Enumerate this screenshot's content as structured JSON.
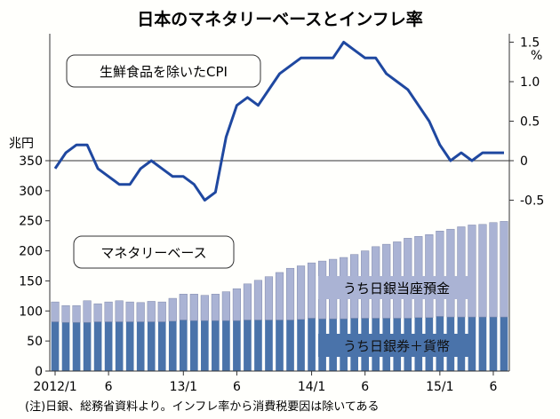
{
  "chart_data": {
    "title": "日本のマネタリーベースとインフレ率",
    "type": "bar+line",
    "left_axis": {
      "unit": "兆円",
      "ticks": [
        0,
        50,
        100,
        150,
        200,
        250,
        300,
        350
      ],
      "ylim": [
        0,
        350
      ]
    },
    "right_axis": {
      "unit": "%",
      "ticks": [
        "1.5",
        "1.0",
        "0.5",
        "0",
        "-0.5"
      ],
      "ylim": [
        -0.63,
        2.03
      ]
    },
    "x_tick_labels": [
      {
        "label": "2012/1",
        "index": 0
      },
      {
        "label": "6",
        "index": 5
      },
      {
        "label": "13/1",
        "index": 12
      },
      {
        "label": "6",
        "index": 17
      },
      {
        "label": "14/1",
        "index": 24
      },
      {
        "label": "6",
        "index": 29
      },
      {
        "label": "15/1",
        "index": 36
      },
      {
        "label": "6",
        "index": 41
      }
    ],
    "bar_series": [
      {
        "name": "うち日銀券＋貨幣",
        "color": "#4a73aa",
        "values": [
          82,
          81,
          81,
          81,
          82,
          82,
          82,
          82,
          82,
          82,
          82,
          83,
          85,
          84,
          84,
          84,
          84,
          84,
          85,
          85,
          85,
          85,
          85,
          86,
          88,
          87,
          87,
          87,
          88,
          88,
          88,
          88,
          88,
          88,
          89,
          89,
          91,
          90,
          90,
          90,
          90,
          90,
          90
        ]
      },
      {
        "name": "うち日銀当座預金",
        "color": "#aab3d4",
        "values": [
          33,
          28,
          28,
          36,
          30,
          33,
          35,
          33,
          32,
          34,
          33,
          38,
          43,
          44,
          42,
          44,
          48,
          53,
          60,
          66,
          72,
          79,
          86,
          89,
          92,
          96,
          99,
          102,
          106,
          112,
          119,
          123,
          127,
          133,
          135,
          138,
          142,
          146,
          150,
          153,
          154,
          157,
          159
        ]
      }
    ],
    "line_series": {
      "name": "生鮮食品を除いたCPI",
      "color": "#1f48a0",
      "values": [
        -0.1,
        0.1,
        0.2,
        0.2,
        -0.1,
        -0.2,
        -0.3,
        -0.3,
        -0.1,
        0.0,
        -0.1,
        -0.2,
        -0.2,
        -0.3,
        -0.5,
        -0.4,
        0.3,
        0.7,
        0.8,
        0.7,
        0.9,
        1.1,
        1.2,
        1.3,
        1.3,
        1.3,
        1.3,
        1.5,
        1.4,
        1.3,
        1.3,
        1.1,
        1.0,
        0.9,
        0.7,
        0.5,
        0.2,
        0.0,
        0.1,
        0.0,
        0.1,
        0.1,
        0.1
      ]
    },
    "labels": {
      "cpi": "生鮮食品を除いたCPI",
      "mb": "マネタリーベース",
      "deposits": "うち日銀当座預金",
      "notes": "うち日銀券＋貨幣"
    },
    "note": "(注)日銀、総務省資料より。インフレ率から消費税要因は除いてある"
  }
}
